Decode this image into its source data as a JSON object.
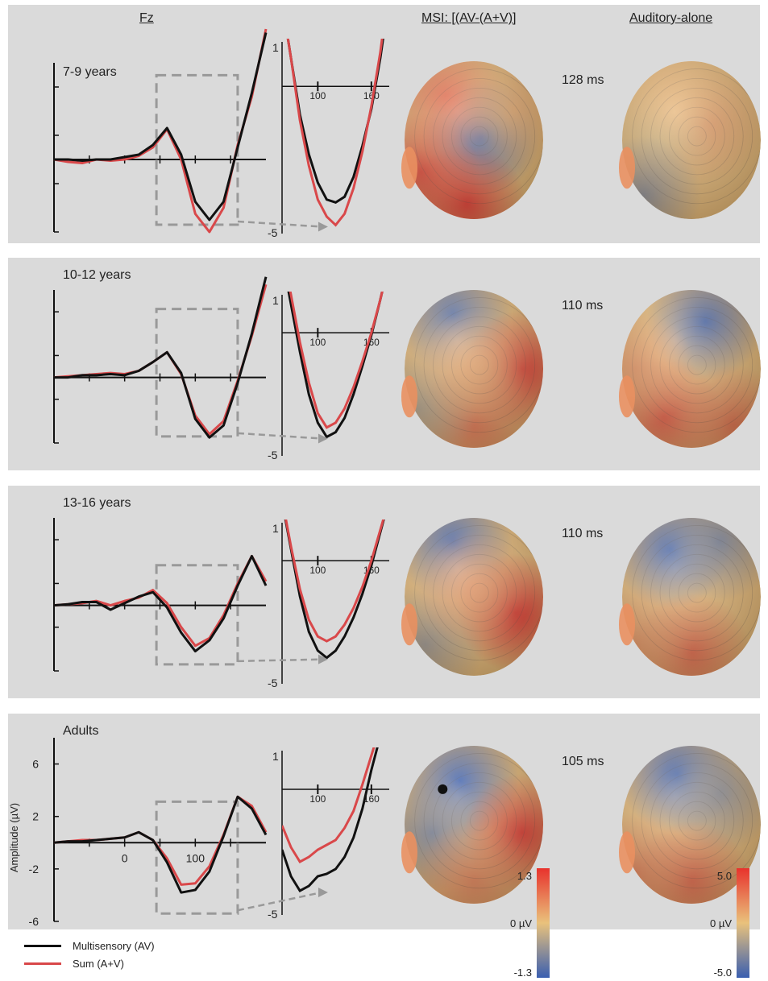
{
  "headers": {
    "fz": "Fz",
    "msi": "MSI: [(AV-(A+V)]",
    "aud": "Auditory-alone"
  },
  "colors": {
    "multisensory": "#111111",
    "sum": "#d9484a",
    "panel_bg": "#dadada",
    "dashed": "#999999",
    "scale_high": "#e8322c",
    "scale_mid": "#e9c27c",
    "scale_low": "#3a5fb0"
  },
  "legend": {
    "multisensory": "Multisensory (AV)",
    "sum": "Sum (A+V)"
  },
  "scales": {
    "msi": {
      "max": "1.3",
      "mid": "0 µV",
      "min": "-1.3"
    },
    "aud": {
      "max": "5.0",
      "mid": "0 µV",
      "min": "-5.0"
    }
  },
  "chart_data": {
    "type": "line",
    "xlabel": "",
    "ylabel": "Amplitude (µV)",
    "y_ticks": [
      "6",
      "2",
      "-2",
      "-6"
    ],
    "x_ticks": [
      "0",
      "100"
    ],
    "inset_y_ticks": [
      "1",
      "-5"
    ],
    "inset_x_ticks": [
      "100",
      "160"
    ],
    "series": [
      {
        "name": "Multisensory (AV)",
        "key": "av"
      },
      {
        "name": "Sum (A+V)",
        "key": "sum"
      }
    ],
    "panels": [
      {
        "label": "7-9 years",
        "latency": "128 ms",
        "main": {
          "x": [
            -100,
            -80,
            -60,
            -40,
            -20,
            0,
            20,
            40,
            60,
            80,
            100,
            120,
            140,
            160,
            180,
            200
          ],
          "av": [
            0,
            0,
            -0.1,
            0,
            0,
            0.2,
            0.4,
            1.2,
            2.6,
            0.4,
            -3.5,
            -5,
            -3.5,
            1,
            5.5,
            10.5
          ],
          "sum": [
            0,
            -0.2,
            -0.3,
            0,
            -0.1,
            0,
            0.3,
            1,
            2.5,
            0,
            -4.5,
            -6,
            -4,
            1.2,
            5.2,
            10.8
          ]
        },
        "inset": {
          "x": [
            60,
            70,
            80,
            90,
            100,
            110,
            120,
            130,
            140,
            150,
            160,
            170,
            180
          ],
          "av": [
            3,
            1,
            -1,
            -2.4,
            -3.4,
            -4.0,
            -4.1,
            -3.9,
            -3.2,
            -2.1,
            -0.8,
            1,
            3.2
          ],
          "sum": [
            3,
            1,
            -1.2,
            -2.8,
            -4.0,
            -4.6,
            -4.9,
            -4.5,
            -3.6,
            -2.3,
            -0.7,
            1.2,
            3.6
          ]
        },
        "msi_map": {
          "hotspots": [
            {
              "x": 0.55,
              "y": 0.48,
              "v": -0.9
            },
            {
              "x": 0.3,
              "y": 0.22,
              "v": 0.6
            },
            {
              "x": 0.12,
              "y": 0.7,
              "v": 0.8
            },
            {
              "x": 0.45,
              "y": 0.9,
              "v": 0.9
            },
            {
              "x": 0.8,
              "y": 0.3,
              "v": 0.15
            }
          ]
        },
        "aud_map": {
          "hotspots": [
            {
              "x": 0.6,
              "y": 0.4,
              "v": 0.25
            },
            {
              "x": 0.25,
              "y": 0.5,
              "v": -0.1
            },
            {
              "x": 0.15,
              "y": 0.85,
              "v": -0.5
            },
            {
              "x": 0.35,
              "y": 0.15,
              "v": 0.1
            }
          ]
        }
      },
      {
        "label": "10-12 years",
        "latency": "110 ms",
        "main": {
          "x": [
            -100,
            -80,
            -60,
            -40,
            -20,
            0,
            20,
            40,
            60,
            80,
            100,
            120,
            140,
            160,
            180,
            200
          ],
          "av": [
            0,
            0,
            0.2,
            0.2,
            0.3,
            0.2,
            0.6,
            1.4,
            2.3,
            0.4,
            -3.8,
            -5.5,
            -4.4,
            -0.5,
            4,
            9.2
          ],
          "sum": [
            0,
            0.1,
            0.2,
            0.3,
            0.4,
            0.3,
            0.6,
            1.4,
            2.3,
            0.3,
            -3.5,
            -5.2,
            -4,
            -0.3,
            3.8,
            8.5
          ]
        },
        "inset": {
          "x": [
            60,
            70,
            80,
            90,
            100,
            110,
            120,
            130,
            140,
            150,
            160,
            170,
            180
          ],
          "av": [
            3.2,
            1.2,
            -0.8,
            -2.6,
            -3.8,
            -4.4,
            -4.2,
            -3.6,
            -2.6,
            -1.4,
            -0.1,
            1.4,
            3.0
          ],
          "sum": [
            3.5,
            1.6,
            -0.4,
            -2.1,
            -3.4,
            -4.0,
            -3.8,
            -3.2,
            -2.3,
            -1.2,
            0,
            1.4,
            3.0
          ]
        },
        "msi_map": {
          "hotspots": [
            {
              "x": 0.35,
              "y": 0.15,
              "v": -0.8
            },
            {
              "x": 0.85,
              "y": 0.5,
              "v": 0.9
            },
            {
              "x": 0.5,
              "y": 0.85,
              "v": 0.5
            },
            {
              "x": 0.1,
              "y": 0.75,
              "v": -0.3
            },
            {
              "x": 0.5,
              "y": 0.5,
              "v": 0.2
            }
          ]
        },
        "aud_map": {
          "hotspots": [
            {
              "x": 0.6,
              "y": 0.2,
              "v": -0.9
            },
            {
              "x": 0.3,
              "y": 0.8,
              "v": 0.7
            },
            {
              "x": 0.8,
              "y": 0.85,
              "v": 0.5
            },
            {
              "x": 0.1,
              "y": 0.5,
              "v": 0.3
            }
          ]
        }
      },
      {
        "label": "13-16 years",
        "latency": "110 ms",
        "main": {
          "x": [
            -100,
            -80,
            -60,
            -40,
            -20,
            0,
            20,
            40,
            60,
            80,
            100,
            120,
            140,
            160,
            180,
            200
          ],
          "av": [
            0,
            0.1,
            0.3,
            0.3,
            -0.4,
            0.2,
            0.8,
            1.2,
            -0.2,
            -2.5,
            -4.2,
            -3.2,
            -1.2,
            1.8,
            4.5,
            1.8
          ],
          "sum": [
            0,
            0.1,
            0.2,
            0.4,
            0,
            0.4,
            0.7,
            1.4,
            0.2,
            -2,
            -3.7,
            -3,
            -0.9,
            2,
            4.5,
            2.2
          ]
        },
        "inset": {
          "x": [
            60,
            70,
            80,
            90,
            100,
            110,
            120,
            130,
            140,
            150,
            160,
            170,
            180
          ],
          "av": [
            2.5,
            0.5,
            -1.5,
            -3.0,
            -3.8,
            -4.1,
            -3.8,
            -3.2,
            -2.4,
            -1.4,
            -0.2,
            1.2,
            2.6
          ],
          "sum": [
            2.6,
            0.6,
            -1.2,
            -2.5,
            -3.2,
            -3.4,
            -3.2,
            -2.7,
            -2.0,
            -1.1,
            0,
            1.3,
            2.6
          ]
        },
        "msi_map": {
          "hotspots": [
            {
              "x": 0.35,
              "y": 0.15,
              "v": -0.9
            },
            {
              "x": 0.8,
              "y": 0.6,
              "v": 1.0
            },
            {
              "x": 0.15,
              "y": 0.8,
              "v": -0.4
            },
            {
              "x": 0.5,
              "y": 0.45,
              "v": 0.3
            }
          ]
        },
        "aud_map": {
          "hotspots": [
            {
              "x": 0.35,
              "y": 0.2,
              "v": -0.95
            },
            {
              "x": 0.7,
              "y": 0.15,
              "v": -0.6
            },
            {
              "x": 0.5,
              "y": 0.85,
              "v": 0.6
            },
            {
              "x": 0.1,
              "y": 0.8,
              "v": 0.3
            }
          ]
        }
      },
      {
        "label": "Adults",
        "latency": "105 ms",
        "main": {
          "x": [
            -100,
            -80,
            -60,
            -40,
            -20,
            0,
            20,
            40,
            60,
            80,
            100,
            120,
            140,
            160,
            180,
            200
          ],
          "av": [
            0,
            0.1,
            0.1,
            0.2,
            0.3,
            0.4,
            0.8,
            0.2,
            -1.5,
            -3.8,
            -3.6,
            -2.2,
            0.5,
            3.5,
            2.6,
            0.6
          ],
          "sum": [
            0,
            0.1,
            0.2,
            0.2,
            0.3,
            0.4,
            0.8,
            0.2,
            -1.2,
            -3.2,
            -3.1,
            -1.8,
            0.6,
            3.5,
            2.8,
            0.8
          ]
        },
        "inset": {
          "x": [
            60,
            70,
            80,
            90,
            100,
            110,
            120,
            130,
            140,
            150,
            160,
            170,
            180
          ],
          "av": [
            -2.5,
            -3.6,
            -4.2,
            -4.0,
            -3.6,
            -3.5,
            -3.3,
            -2.8,
            -2.0,
            -0.8,
            0.8,
            2.2,
            3.4
          ],
          "sum": [
            -1.5,
            -2.4,
            -3.0,
            -2.8,
            -2.5,
            -2.3,
            -2.1,
            -1.6,
            -0.9,
            0.2,
            1.4,
            2.6,
            3.6
          ]
        },
        "msi_map": {
          "hotspots": [
            {
              "x": 0.4,
              "y": 0.22,
              "v": -1.0
            },
            {
              "x": 0.2,
              "y": 0.55,
              "v": -0.6
            },
            {
              "x": 0.85,
              "y": 0.55,
              "v": 0.9
            },
            {
              "x": 0.5,
              "y": 0.85,
              "v": 0.4
            }
          ],
          "marker": true
        },
        "aud_map": {
          "hotspots": [
            {
              "x": 0.4,
              "y": 0.18,
              "v": -1.0
            },
            {
              "x": 0.7,
              "y": 0.3,
              "v": -0.5
            },
            {
              "x": 0.5,
              "y": 0.85,
              "v": 0.6
            },
            {
              "x": 0.1,
              "y": 0.8,
              "v": 0.4
            }
          ]
        }
      }
    ]
  }
}
